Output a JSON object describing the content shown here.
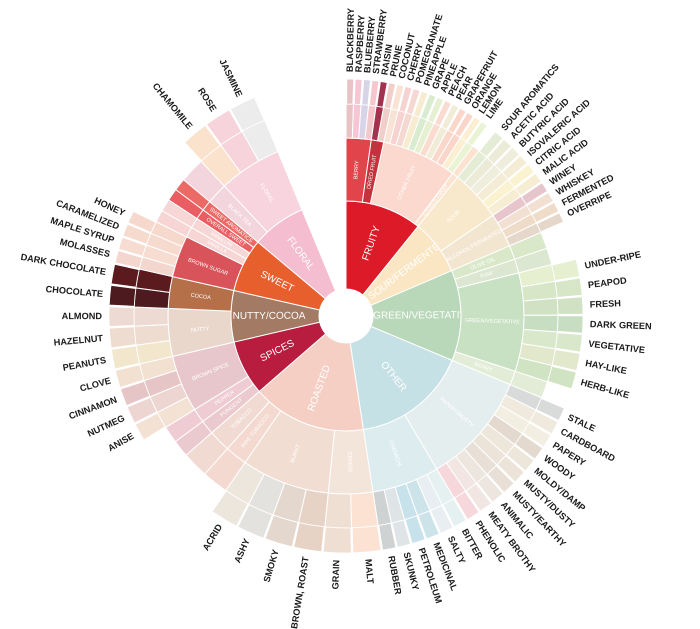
{
  "chart_data": {
    "type": "sunburst",
    "title": "",
    "segments": [
      {
        "name": "FRUITY",
        "color": "#dc1a28",
        "children": [
          {
            "name": "BERRY",
            "color": "#e2444c",
            "children": [
              {
                "name": "BLACKBERRY",
                "color": "#e8c3c6"
              },
              {
                "name": "RASPBERRY",
                "color": "#f7c5d3"
              },
              {
                "name": "BLUEBERRY",
                "color": "#d7d4e8"
              },
              {
                "name": "STRAWBERRY",
                "color": "#f5c6cc"
              }
            ]
          },
          {
            "name": "DRIED FRUIT",
            "color": "#c5323e",
            "children": [
              {
                "name": "RAISIN",
                "color": "#a3324f"
              },
              {
                "name": "PRUNE",
                "color": "#f1cfc8"
              }
            ]
          },
          {
            "name": "OTHER FRUIT",
            "color": "#fbd9cf",
            "children": [
              {
                "name": "COCONUT",
                "color": "#f8e3d4"
              },
              {
                "name": "CHERRY",
                "color": "#f6d2d0"
              },
              {
                "name": "POMEGRANATE",
                "color": "#f5d8d2"
              },
              {
                "name": "PINEAPPLE",
                "color": "#f7ecd0"
              },
              {
                "name": "GRAPE",
                "color": "#d9ecd0"
              },
              {
                "name": "APPLE",
                "color": "#e8f0d2"
              },
              {
                "name": "PEACH",
                "color": "#f9dccf"
              },
              {
                "name": "PEAR",
                "color": "#f1ecd8"
              },
              {
                "name": "GRAPEFRUIT",
                "color": "#fbd7ca"
              },
              {
                "name": "ORANGE",
                "color": "#fad5c9"
              },
              {
                "name": "LEMON",
                "color": "#fbeed1"
              },
              {
                "name": "LIME",
                "color": "#eaf3d4"
              }
            ]
          },
          {
            "name": "CITRUS FRUIT",
            "color": "#fbe3cf",
            "children": []
          }
        ]
      },
      {
        "name": "SOUR/FERMENTED",
        "color": "#fbe6c4",
        "children": [
          {
            "name": "SOUR",
            "color": "#f9e9cc",
            "children": [
              {
                "name": "SOUR AROMATICS",
                "color": "#e4ecd5"
              },
              {
                "name": "ACETIC ACID",
                "color": "#ecebd8"
              },
              {
                "name": "BUTYRIC ACID",
                "color": "#efeddc"
              },
              {
                "name": "ISOVALERIC ACID",
                "color": "#f4ecd4"
              },
              {
                "name": "CITRIC ACID",
                "color": "#fbf3cf"
              },
              {
                "name": "MALIC ACID",
                "color": "#f6edd2"
              }
            ]
          },
          {
            "name": "ALCOHOL/FERMENTED",
            "color": "#f3e6d0",
            "children": [
              {
                "name": "WINEY",
                "color": "#e7c5cc"
              },
              {
                "name": "WHISKEY",
                "color": "#f2e0d3"
              },
              {
                "name": "FERMENTED",
                "color": "#eedbc8"
              },
              {
                "name": "OVERRIPE",
                "color": "#e5d8cb"
              }
            ]
          }
        ]
      },
      {
        "name": "GREEN/VEGETATIVE",
        "color": "#b9d8b9",
        "children": [
          {
            "name": "OLIVE OIL",
            "color": "#d8e8c9",
            "children": []
          },
          {
            "name": "RAW",
            "color": "#dbe7d0",
            "children": []
          },
          {
            "name": "GREEN/VEGETATIVE",
            "color": "#c9e1c3",
            "children": [
              {
                "name": "UNDER-RIPE",
                "color": "#e6efd0"
              },
              {
                "name": "PEAPOD",
                "color": "#d6e6c6"
              },
              {
                "name": "FRESH",
                "color": "#d1e2c4"
              },
              {
                "name": "DARK GREEN",
                "color": "#c8dec2"
              },
              {
                "name": "VEGETATIVE",
                "color": "#d9e7cb"
              },
              {
                "name": "HAY-LIKE",
                "color": "#e2e8cc"
              },
              {
                "name": "HERB-LIKE",
                "color": "#d0e4c4"
              }
            ]
          },
          {
            "name": "BEANY",
            "color": "#e3ecd6",
            "children": []
          }
        ]
      },
      {
        "name": "OTHER",
        "color": "#c6e1e6",
        "children": [
          {
            "name": "PAPERY/MUSTY",
            "color": "#e5eeee",
            "children": [
              {
                "name": "STALE",
                "color": "#d9dbdb"
              },
              {
                "name": "CARDBOARD",
                "color": "#f0e9de"
              },
              {
                "name": "PAPERY",
                "color": "#f2eee2"
              },
              {
                "name": "WOODY",
                "color": "#e3d9ce"
              },
              {
                "name": "MOLDY/DAMP",
                "color": "#ede6da"
              },
              {
                "name": "MUSTY/DUSTY",
                "color": "#ece4d9"
              },
              {
                "name": "MUSTY/EARTHY",
                "color": "#e8e0d6"
              },
              {
                "name": "ANIMALIC",
                "color": "#ece6df"
              },
              {
                "name": "MEATY BROTHY",
                "color": "#f1e6e2"
              },
              {
                "name": "PHENOLIC",
                "color": "#f6d8dc"
              }
            ]
          },
          {
            "name": "CHEMICAL",
            "color": "#dcecef",
            "children": [
              {
                "name": "BITTER",
                "color": "#e4f1f0"
              },
              {
                "name": "SALTY",
                "color": "#e8eef1"
              },
              {
                "name": "MEDICINAL",
                "color": "#cce3ea"
              },
              {
                "name": "PETROLEUM",
                "color": "#c7e2ea"
              },
              {
                "name": "SKUNKY",
                "color": "#dfe4e6"
              },
              {
                "name": "RUBBER",
                "color": "#cfd2d3"
              }
            ]
          }
        ]
      },
      {
        "name": "ROASTED",
        "color": "#f6cfc4",
        "children": [
          {
            "name": "CEREAL",
            "color": "#f4e5da",
            "children": [
              {
                "name": "MALT",
                "color": "#fbe2d3"
              },
              {
                "name": "GRAIN",
                "color": "#efdfd3"
              }
            ]
          },
          {
            "name": "BURNT",
            "color": "#f1ddd2",
            "children": [
              {
                "name": "BROWN, ROAST",
                "color": "#e7d3c6"
              },
              {
                "name": "SMOKY",
                "color": "#e4d8ce"
              },
              {
                "name": "ASHY",
                "color": "#e3e2df"
              },
              {
                "name": "ACRID",
                "color": "#ece6dd"
              }
            ]
          },
          {
            "name": "PIPE TOBACCO",
            "color": "#f3d9cf",
            "children": []
          },
          {
            "name": "TOBACCO",
            "color": "#f1dad2",
            "children": []
          }
        ]
      },
      {
        "name": "SPICES",
        "color": "#b81d3f",
        "children": [
          {
            "name": "PUNGENT",
            "color": "#eac9cf",
            "children": []
          },
          {
            "name": "PEPPER",
            "color": "#efcbd3",
            "children": []
          },
          {
            "name": "BROWN SPICE",
            "color": "#e8c7cc",
            "children": [
              {
                "name": "ANISE",
                "color": "#f3e2d4"
              },
              {
                "name": "NUTMEG",
                "color": "#edd6d2"
              },
              {
                "name": "CINNAMON",
                "color": "#e6c5c7"
              },
              {
                "name": "CLOVE",
                "color": "#f2e1d1"
              }
            ]
          }
        ]
      },
      {
        "name": "NUTTY/COCOA",
        "color": "#a37a63",
        "children": [
          {
            "name": "NUTTY",
            "color": "#ead7cc",
            "children": [
              {
                "name": "PEANUTS",
                "color": "#f2e6cd"
              },
              {
                "name": "HAZELNUT",
                "color": "#efdcd0"
              },
              {
                "name": "ALMOND",
                "color": "#eddbd3"
              }
            ]
          },
          {
            "name": "COCOA",
            "color": "#b5704a",
            "children": [
              {
                "name": "CHOCOLATE",
                "color": "#4c1a1f"
              },
              {
                "name": "DARK CHOCOLATE",
                "color": "#5b1a1e"
              }
            ]
          }
        ]
      },
      {
        "name": "SWEET",
        "color": "#e85f2e",
        "children": [
          {
            "name": "BROWN SUGAR",
            "color": "#d9545a",
            "children": [
              {
                "name": "MOLASSES",
                "color": "#f3d7cf"
              },
              {
                "name": "MAPLE SYRUP",
                "color": "#f7dcd1"
              },
              {
                "name": "CARAMELIZED",
                "color": "#f7dace"
              },
              {
                "name": "HONEY",
                "color": "#f7d8cd"
              }
            ]
          },
          {
            "name": "VANILLA",
            "color": "#f7d5d4",
            "children": []
          },
          {
            "name": "VANILLIN",
            "color": "#f6d7d5",
            "children": []
          },
          {
            "name": "OVERALL SWEET",
            "color": "#ea5e63",
            "children": []
          },
          {
            "name": "SWEET AROMATICS",
            "color": "#ec6a66",
            "children": []
          }
        ]
      },
      {
        "name": "FLORAL",
        "color": "#f5bed0",
        "children": [
          {
            "name": "BLACK TEA",
            "color": "#f3d6dd",
            "children": []
          },
          {
            "name": "FLORAL",
            "color": "#f7d4de",
            "children": [
              {
                "name": "CHAMOMILE",
                "color": "#fbe2cd"
              },
              {
                "name": "ROSE",
                "color": "#f7d3dc"
              },
              {
                "name": "JASMINE",
                "color": "#ececec"
              }
            ]
          }
        ]
      }
    ]
  }
}
